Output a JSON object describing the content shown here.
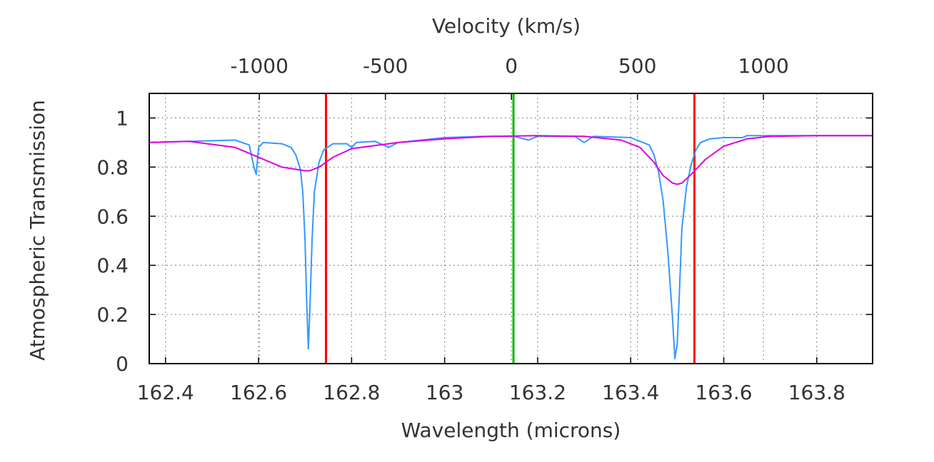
{
  "chart_data": {
    "type": "line",
    "xlabel": "Wavelength (microns)",
    "x2label": "Velocity (km/s)",
    "ylabel": "Atmospheric Transmission",
    "xlim": [
      162.365,
      163.92
    ],
    "ylim": [
      0,
      1.1
    ],
    "x2lim": [
      -1437,
      1433
    ],
    "xticks": [
      162.4,
      162.6,
      162.8,
      163.0,
      163.2,
      163.4,
      163.6,
      163.8
    ],
    "xtick_labels": [
      "162.4",
      "162.6",
      "162.8",
      "163",
      "163.2",
      "163.4",
      "163.6",
      "163.8"
    ],
    "x2ticks": [
      -1000,
      -500,
      0,
      500,
      1000
    ],
    "x2tick_labels": [
      "-1000",
      "-500",
      "0",
      "500",
      "1000"
    ],
    "yticks": [
      0,
      0.2,
      0.4,
      0.6,
      0.8,
      1.0
    ],
    "ytick_labels": [
      "0",
      "0.2",
      "0.4",
      "0.6",
      "0.8",
      "1"
    ],
    "grid": true,
    "series": [
      {
        "color": "#3399ff",
        "x": [
          162.365,
          162.45,
          162.55,
          162.58,
          162.59,
          162.595,
          162.6,
          162.61,
          162.65,
          162.67,
          162.68,
          162.69,
          162.695,
          162.7,
          162.703,
          162.707,
          162.71,
          162.715,
          162.72,
          162.73,
          162.74,
          162.76,
          162.79,
          162.8,
          162.81,
          162.85,
          162.88,
          162.9,
          162.95,
          163.0,
          163.08,
          163.12,
          163.15,
          163.18,
          163.2,
          163.28,
          163.3,
          163.32,
          163.4,
          163.44,
          163.45,
          163.46,
          163.47,
          163.48,
          163.49,
          163.495,
          163.5,
          163.505,
          163.51,
          163.52,
          163.53,
          163.54,
          163.55,
          163.57,
          163.6,
          163.64,
          163.65,
          163.7,
          163.8,
          163.92
        ],
        "y": [
          0.9,
          0.905,
          0.91,
          0.89,
          0.8,
          0.77,
          0.88,
          0.9,
          0.895,
          0.88,
          0.85,
          0.79,
          0.7,
          0.5,
          0.28,
          0.06,
          0.2,
          0.5,
          0.7,
          0.82,
          0.87,
          0.895,
          0.895,
          0.88,
          0.9,
          0.905,
          0.88,
          0.9,
          0.91,
          0.92,
          0.925,
          0.925,
          0.925,
          0.91,
          0.925,
          0.925,
          0.9,
          0.925,
          0.92,
          0.89,
          0.85,
          0.78,
          0.66,
          0.45,
          0.18,
          0.02,
          0.08,
          0.3,
          0.55,
          0.72,
          0.81,
          0.87,
          0.9,
          0.915,
          0.92,
          0.92,
          0.928,
          0.928,
          0.928,
          0.928
        ]
      },
      {
        "color": "#e000e0",
        "x": [
          162.365,
          162.45,
          162.55,
          162.6,
          162.65,
          162.7,
          162.71,
          162.73,
          162.76,
          162.8,
          162.9,
          163.0,
          163.1,
          163.2,
          163.3,
          163.38,
          163.42,
          163.45,
          163.47,
          163.49,
          163.5,
          163.51,
          163.53,
          163.56,
          163.6,
          163.65,
          163.7,
          163.8,
          163.92
        ],
        "y": [
          0.9,
          0.905,
          0.88,
          0.84,
          0.8,
          0.785,
          0.785,
          0.8,
          0.84,
          0.875,
          0.9,
          0.915,
          0.925,
          0.928,
          0.925,
          0.91,
          0.88,
          0.82,
          0.765,
          0.735,
          0.73,
          0.735,
          0.77,
          0.83,
          0.885,
          0.915,
          0.925,
          0.928,
          0.928
        ]
      }
    ],
    "vlines": [
      {
        "x": 162.745,
        "color": "#ff0000"
      },
      {
        "x": 163.148,
        "color": "#00bb00"
      },
      {
        "x": 163.537,
        "color": "#ff0000"
      }
    ]
  }
}
